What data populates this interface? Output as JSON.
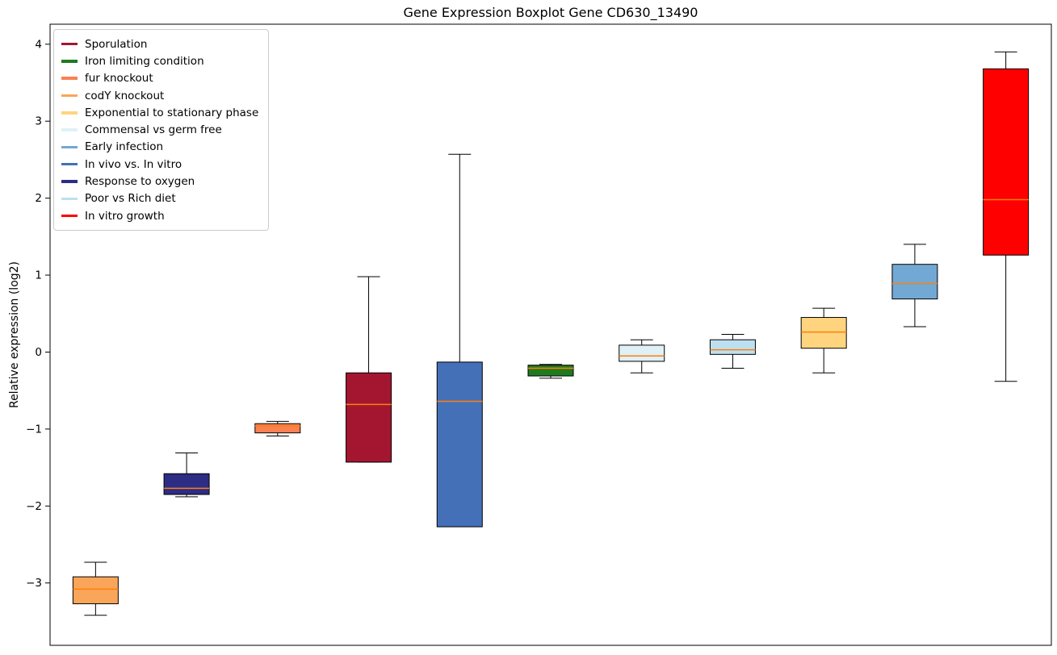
{
  "chart_data": {
    "type": "boxplot",
    "title": "Gene Expression Boxplot Gene CD630_13490",
    "ylabel": "Relative expression (log2)",
    "xlabel": "",
    "ylim": [
      -3.81,
      4.26
    ],
    "yticks": [
      -3,
      -2,
      -1,
      0,
      1,
      2,
      3,
      4
    ],
    "grid": false,
    "legend_position": "upper left",
    "background_color": "#ffffff",
    "axes_color": "#000000",
    "median_color": "#ff7f0e",
    "box_edge_color": "#000000",
    "series": [
      {
        "name": "codY knockout",
        "color": "#f9a65a",
        "low": -3.42,
        "q1": -3.27,
        "median": -3.08,
        "q3": -2.92,
        "high": -2.73
      },
      {
        "name": "Response to oxygen",
        "color": "#2d2d86",
        "low": -1.88,
        "q1": -1.85,
        "median": -1.77,
        "q3": -1.58,
        "high": -1.31
      },
      {
        "name": "fur knockout",
        "color": "#fb8052",
        "low": -1.09,
        "q1": -1.05,
        "median": -0.96,
        "q3": -0.93,
        "high": -0.9
      },
      {
        "name": "Sporulation",
        "color": "#a41630",
        "low": -1.43,
        "q1": -1.43,
        "median": -0.68,
        "q3": -0.27,
        "high": 0.98
      },
      {
        "name": "In vivo vs. In vitro",
        "color": "#4470b8",
        "low": -2.27,
        "q1": -2.27,
        "median": -0.64,
        "q3": -0.13,
        "high": 2.57
      },
      {
        "name": "Iron limiting condition",
        "color": "#1f7a1f",
        "low": -0.34,
        "q1": -0.31,
        "median": -0.21,
        "q3": -0.17,
        "high": -0.16
      },
      {
        "name": "Commensal vs germ free",
        "color": "#dff1f7",
        "low": -0.27,
        "q1": -0.12,
        "median": -0.05,
        "q3": 0.09,
        "high": 0.16
      },
      {
        "name": "Poor vs Rich diet",
        "color": "#bde0f0",
        "low": -0.21,
        "q1": -0.03,
        "median": 0.03,
        "q3": 0.16,
        "high": 0.23
      },
      {
        "name": "Exponential to stationary phase",
        "color": "#ffd47e",
        "low": -0.27,
        "q1": 0.05,
        "median": 0.26,
        "q3": 0.45,
        "high": 0.57
      },
      {
        "name": "Early infection",
        "color": "#72a8d4",
        "low": 0.33,
        "q1": 0.69,
        "median": 0.89,
        "q3": 1.14,
        "high": 1.4
      },
      {
        "name": "In vitro growth",
        "color": "#ff0000",
        "low": -0.38,
        "q1": 1.26,
        "median": 1.98,
        "q3": 3.68,
        "high": 3.9
      }
    ],
    "legend": [
      {
        "label": "Sporulation",
        "color": "#a41630"
      },
      {
        "label": "Iron limiting condition",
        "color": "#1f7a1f"
      },
      {
        "label": "fur knockout",
        "color": "#fb8052"
      },
      {
        "label": "codY knockout",
        "color": "#f9a65a"
      },
      {
        "label": "Exponential to stationary phase",
        "color": "#ffd47e"
      },
      {
        "label": "Commensal vs germ free",
        "color": "#dff1f7"
      },
      {
        "label": "Early infection",
        "color": "#72a8d4"
      },
      {
        "label": "In vivo vs. In vitro",
        "color": "#4470b8"
      },
      {
        "label": "Response to oxygen",
        "color": "#2d2d86"
      },
      {
        "label": "Poor vs Rich diet",
        "color": "#bde0f0"
      },
      {
        "label": "In vitro growth",
        "color": "#ff0000"
      }
    ]
  }
}
